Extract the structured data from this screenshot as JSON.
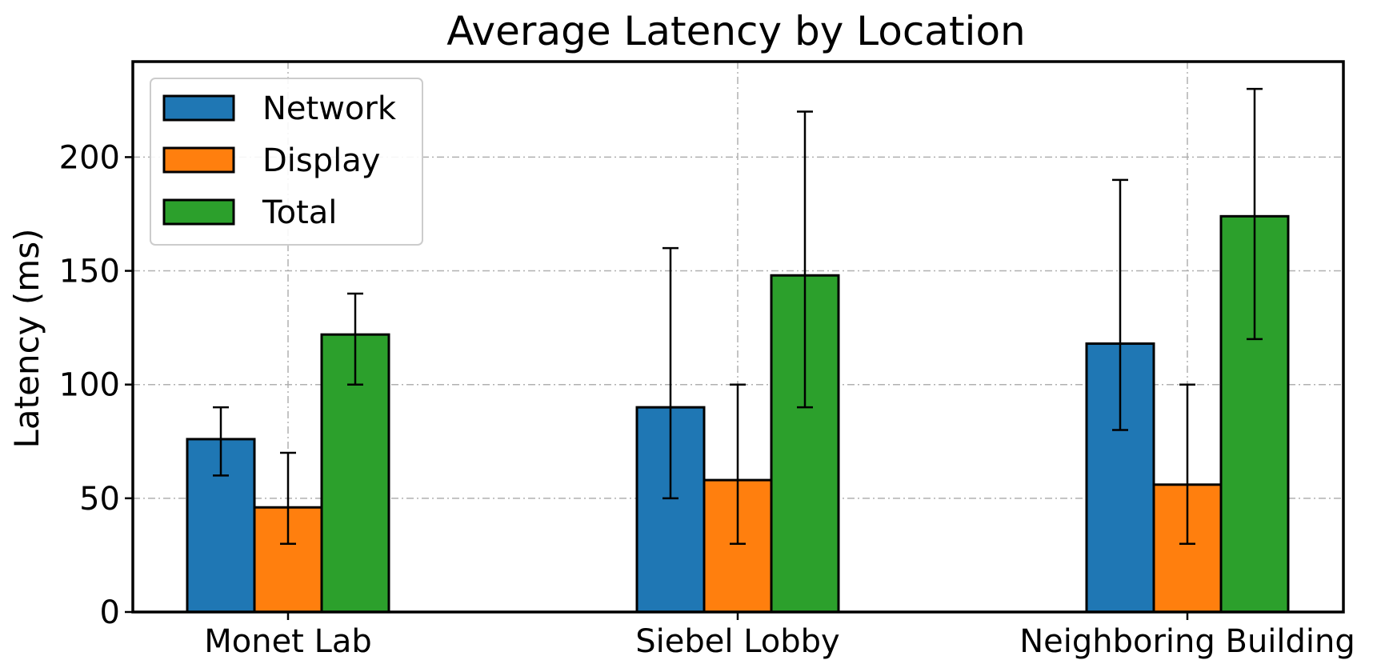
{
  "chart_data": {
    "type": "bar",
    "title": "Average Latency by Location",
    "xlabel": "",
    "ylabel": "Latency (ms)",
    "categories": [
      "Monet Lab",
      "Siebel Lobby",
      "Neighboring Building"
    ],
    "ylim": [
      0,
      242
    ],
    "yticks": [
      0,
      50,
      100,
      150,
      200
    ],
    "grid": true,
    "legend_position": "top-left",
    "series": [
      {
        "name": "Network",
        "color": "#1f77b4",
        "values": [
          76,
          90,
          118
        ],
        "err_low": [
          60,
          50,
          80
        ],
        "err_high": [
          90,
          160,
          190
        ]
      },
      {
        "name": "Display",
        "color": "#ff7f0e",
        "values": [
          46,
          58,
          56
        ],
        "err_low": [
          30,
          30,
          30
        ],
        "err_high": [
          70,
          100,
          100
        ]
      },
      {
        "name": "Total",
        "color": "#2ca02c",
        "values": [
          122,
          148,
          174
        ],
        "err_low": [
          100,
          90,
          120
        ],
        "err_high": [
          140,
          220,
          230
        ]
      }
    ]
  }
}
